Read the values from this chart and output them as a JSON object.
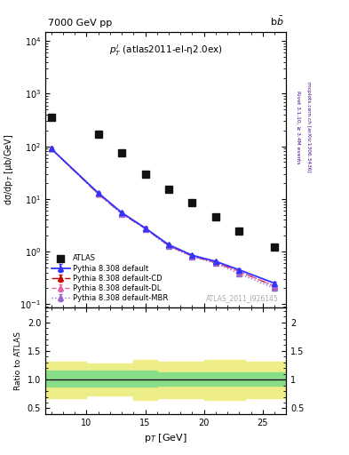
{
  "title_left": "7000 GeV pp",
  "title_right": "b$\\bar{b}$",
  "annotation": "$p^l_T$ (atlas2011-el-η2.0ex)",
  "watermark": "ATLAS_2011_I926145",
  "right_label1": "Rivet 3.1.10, ≥ 3.4M events",
  "right_label2": "mcplots.cern.ch [arXiv:1306.3436]",
  "ylabel_main": "dσ/dp$_T$ [μb/GeV]",
  "ylabel_ratio": "Ratio to ATLAS",
  "xlabel": "p$_T$ [GeV]",
  "xlim": [
    6.5,
    27.0
  ],
  "ylim_main": [
    0.085,
    15000
  ],
  "ylim_ratio": [
    0.4,
    2.25
  ],
  "atlas_x": [
    7.0,
    11.0,
    13.0,
    15.0,
    17.0,
    19.0,
    21.0,
    23.0,
    26.0
  ],
  "atlas_y": [
    350,
    170,
    75,
    30,
    15,
    8.5,
    4.5,
    2.5,
    1.2
  ],
  "mc_x": [
    7.0,
    11.0,
    13.0,
    15.0,
    17.0,
    19.0,
    21.0,
    23.0,
    26.0
  ],
  "mc_default_y": [
    90,
    13.0,
    5.5,
    2.8,
    1.35,
    0.85,
    0.65,
    0.45,
    0.25
  ],
  "mc_cd_y": [
    90,
    12.5,
    5.3,
    2.75,
    1.3,
    0.82,
    0.62,
    0.42,
    0.22
  ],
  "mc_dl_y": [
    90,
    12.5,
    5.3,
    2.75,
    1.3,
    0.82,
    0.62,
    0.42,
    0.22
  ],
  "mc_mbr_y": [
    90,
    12.5,
    5.2,
    2.7,
    1.25,
    0.8,
    0.6,
    0.38,
    0.2
  ],
  "mc_default_err": [
    5,
    0.8,
    0.3,
    0.15,
    0.07,
    0.05,
    0.04,
    0.03,
    0.02
  ],
  "mc_cd_err": [
    5,
    0.8,
    0.3,
    0.15,
    0.07,
    0.05,
    0.04,
    0.03,
    0.02
  ],
  "mc_dl_err": [
    5,
    0.8,
    0.3,
    0.15,
    0.07,
    0.05,
    0.04,
    0.03,
    0.02
  ],
  "mc_mbr_err": [
    5,
    0.8,
    0.3,
    0.15,
    0.07,
    0.05,
    0.04,
    0.03,
    0.02
  ],
  "ratio_x": [
    6.5,
    9.0,
    10.0,
    12.0,
    14.0,
    15.5,
    16.0,
    18.0,
    19.5,
    20.0,
    22.0,
    23.5,
    27.0
  ],
  "ratio_green_lo": [
    0.88,
    0.88,
    0.88,
    0.88,
    0.88,
    0.88,
    0.9,
    0.9,
    0.9,
    0.9,
    0.9,
    0.9,
    0.9
  ],
  "ratio_green_hi": [
    1.15,
    1.15,
    1.15,
    1.15,
    1.15,
    1.15,
    1.13,
    1.13,
    1.13,
    1.13,
    1.13,
    1.13,
    1.13
  ],
  "ratio_yellow_lo": [
    0.68,
    0.68,
    0.72,
    0.72,
    0.65,
    0.65,
    0.68,
    0.68,
    0.68,
    0.65,
    0.65,
    0.68,
    0.68
  ],
  "ratio_yellow_hi": [
    1.32,
    1.32,
    1.28,
    1.28,
    1.35,
    1.35,
    1.32,
    1.32,
    1.32,
    1.35,
    1.35,
    1.32,
    1.32
  ],
  "color_default": "#3333ff",
  "color_cd": "#cc0000",
  "color_dl": "#dd66aa",
  "color_mbr": "#9966cc",
  "color_atlas": "#111111",
  "color_green": "#88dd88",
  "color_yellow": "#eeee88",
  "legend_labels": [
    "ATLAS",
    "Pythia 8.308 default",
    "Pythia 8.308 default-CD",
    "Pythia 8.308 default-DL",
    "Pythia 8.308 default-MBR"
  ]
}
